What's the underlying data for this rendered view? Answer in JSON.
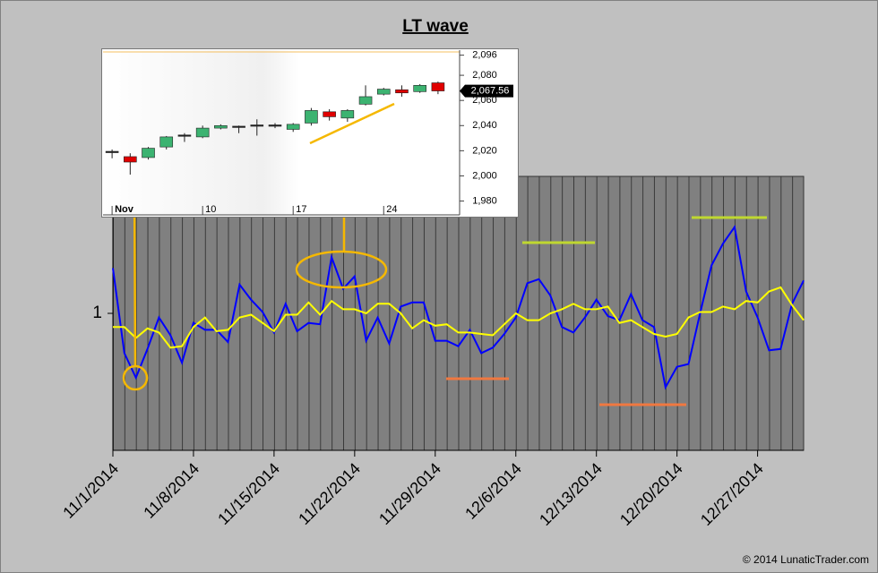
{
  "chart_data": [
    {
      "type": "line",
      "title": "LT wave",
      "x": [
        "2014-11-01",
        "2014-11-02",
        "2014-11-03",
        "2014-11-04",
        "2014-11-05",
        "2014-11-06",
        "2014-11-07",
        "2014-11-08",
        "2014-11-09",
        "2014-11-10",
        "2014-11-11",
        "2014-11-12",
        "2014-11-13",
        "2014-11-14",
        "2014-11-15",
        "2014-11-16",
        "2014-11-17",
        "2014-11-18",
        "2014-11-19",
        "2014-11-20",
        "2014-11-21",
        "2014-11-22",
        "2014-11-23",
        "2014-11-24",
        "2014-11-25",
        "2014-11-26",
        "2014-11-27",
        "2014-11-28",
        "2014-11-29",
        "2014-11-30",
        "2014-12-01",
        "2014-12-02",
        "2014-12-03",
        "2014-12-04",
        "2014-12-05",
        "2014-12-06",
        "2014-12-07",
        "2014-12-08",
        "2014-12-09",
        "2014-12-10",
        "2014-12-11",
        "2014-12-12",
        "2014-12-13",
        "2014-12-14",
        "2014-12-15",
        "2014-12-16",
        "2014-12-17",
        "2014-12-18",
        "2014-12-19",
        "2014-12-20",
        "2014-12-21",
        "2014-12-22",
        "2014-12-23",
        "2014-12-24",
        "2014-12-25",
        "2014-12-26",
        "2014-12-27",
        "2014-12-28",
        "2014-12-29",
        "2014-12-30",
        "2014-12-31"
      ],
      "xlim": [
        "2014-11-01",
        "2014-12-31"
      ],
      "xticks": [
        {
          "value": "2014-11-01",
          "label": "11/1/2014"
        },
        {
          "value": "2014-11-08",
          "label": "11/8/2014"
        },
        {
          "value": "2014-11-15",
          "label": "11/15/2014"
        },
        {
          "value": "2014-11-22",
          "label": "11/22/2014"
        },
        {
          "value": "2014-11-29",
          "label": "11/29/2014"
        },
        {
          "value": "2014-12-06",
          "label": "12/6/2014"
        },
        {
          "value": "2014-12-13",
          "label": "12/13/2014"
        },
        {
          "value": "2014-12-20",
          "label": "12/20/2014"
        },
        {
          "value": "2014-12-27",
          "label": "12/27/2014"
        }
      ],
      "ylim": [
        0,
        2
      ],
      "yticks": [
        1
      ],
      "series": [
        {
          "color": "#0000ff",
          "values": [
            1.33,
            0.71,
            0.53,
            0.74,
            0.97,
            0.84,
            0.64,
            0.93,
            0.88,
            0.88,
            0.79,
            1.21,
            1.1,
            1.01,
            0.86,
            1.07,
            0.87,
            0.93,
            0.92,
            1.41,
            1.18,
            1.27,
            0.8,
            0.97,
            0.78,
            1.05,
            1.08,
            1.08,
            0.8,
            0.8,
            0.76,
            0.88,
            0.71,
            0.75,
            0.85,
            0.97,
            1.22,
            1.25,
            1.13,
            0.9,
            0.86,
            0.97,
            1.1,
            0.98,
            0.95,
            1.14,
            0.95,
            0.9,
            0.46,
            0.61,
            0.63,
            1.0,
            1.35,
            1.51,
            1.63,
            1.16,
            0.97,
            0.73,
            0.74,
            1.07,
            1.24
          ]
        },
        {
          "color": "#ffff00",
          "values": [
            0.9,
            0.9,
            0.82,
            0.89,
            0.86,
            0.75,
            0.76,
            0.9,
            0.97,
            0.87,
            0.88,
            0.97,
            0.99,
            0.93,
            0.87,
            0.99,
            0.99,
            1.08,
            0.99,
            1.09,
            1.03,
            1.03,
            1.0,
            1.07,
            1.07,
            1.0,
            0.89,
            0.95,
            0.91,
            0.92,
            0.86,
            0.86,
            0.85,
            0.84,
            0.92,
            1.0,
            0.95,
            0.95,
            1.0,
            1.03,
            1.07,
            1.03,
            1.03,
            1.05,
            0.93,
            0.95,
            0.9,
            0.85,
            0.83,
            0.85,
            0.97,
            1.01,
            1.01,
            1.05,
            1.03,
            1.09,
            1.08,
            1.16,
            1.19,
            1.06,
            0.95
          ]
        }
      ]
    },
    {
      "type": "candlestick",
      "categories": [
        "Nov",
        null,
        null,
        null,
        null,
        "10",
        null,
        null,
        null,
        null,
        "17",
        null,
        null,
        null,
        null,
        "24",
        null,
        null,
        null
      ],
      "open": [
        2019,
        2015.3,
        2014.6,
        2023,
        2032,
        2031,
        2038,
        2038,
        2039,
        2039.5,
        2037,
        2042,
        2051,
        2046,
        2057,
        2065,
        2068.5,
        2067,
        2074
      ],
      "high": [
        2021,
        2018,
        2023,
        2031.7,
        2034,
        2040,
        2041,
        2040,
        2045,
        2042,
        2042,
        2054,
        2053,
        2053,
        2072,
        2070,
        2072,
        2073,
        2075
      ],
      "low": [
        2014,
        2001,
        2013,
        2021,
        2027,
        2030,
        2037,
        2034,
        2032,
        2038,
        2035,
        2040,
        2044,
        2043,
        2056,
        2064,
        2063,
        2066,
        2065
      ],
      "close": [
        2019,
        2011,
        2022,
        2031,
        2032,
        2038,
        2040,
        2039,
        2040,
        2040,
        2041,
        2052,
        2047,
        2052,
        2063,
        2069,
        2066,
        2072,
        2067.56
      ],
      "up_color": "#3cb371",
      "down_color": "#e00000",
      "ylim": [
        1969,
        2100
      ],
      "yticks": [
        {
          "value": 2096,
          "label": "2,096"
        },
        {
          "value": 2080,
          "label": "2,080"
        },
        {
          "value": 2060,
          "label": "2,060"
        },
        {
          "value": 2040,
          "label": "2,040"
        },
        {
          "value": 2020,
          "label": "2,020"
        },
        {
          "value": 2000,
          "label": "2,000"
        },
        {
          "value": 1980,
          "label": "1,980"
        }
      ],
      "last": {
        "value": 2067.56,
        "label": "2,067.56"
      }
    }
  ],
  "footer": "© 2014 LunaticTrader.com"
}
